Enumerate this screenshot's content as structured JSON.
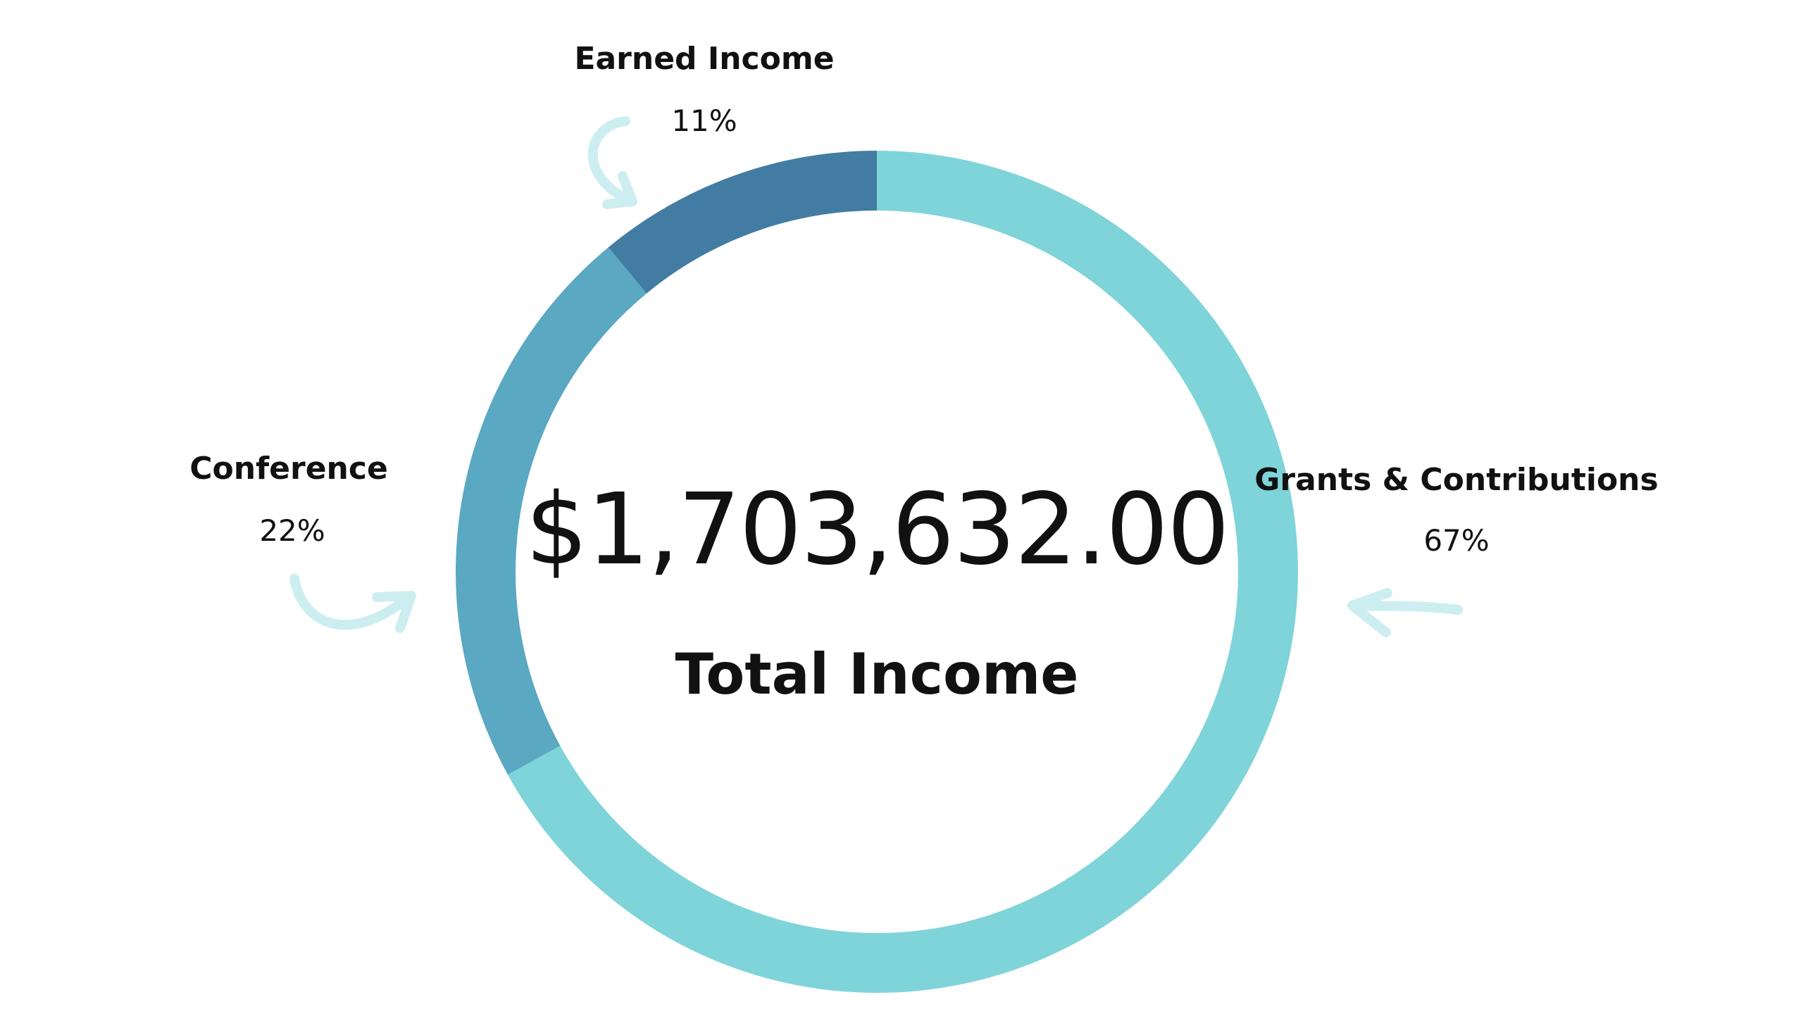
{
  "chart_data": {
    "type": "pie",
    "variant": "donut",
    "center": {
      "value": "$1,703,632.00",
      "label": "Total Income"
    },
    "slices": [
      {
        "name": "Grants & Contributions",
        "value": 67,
        "percent_label": "67%",
        "color": "#7fd4d9"
      },
      {
        "name": "Conference",
        "value": 22,
        "percent_label": "22%",
        "color": "#5aa8c1"
      },
      {
        "name": "Earned Income",
        "value": 11,
        "percent_label": "11%",
        "color": "#427ca2"
      }
    ],
    "arrow_color": "#cdeef0"
  }
}
